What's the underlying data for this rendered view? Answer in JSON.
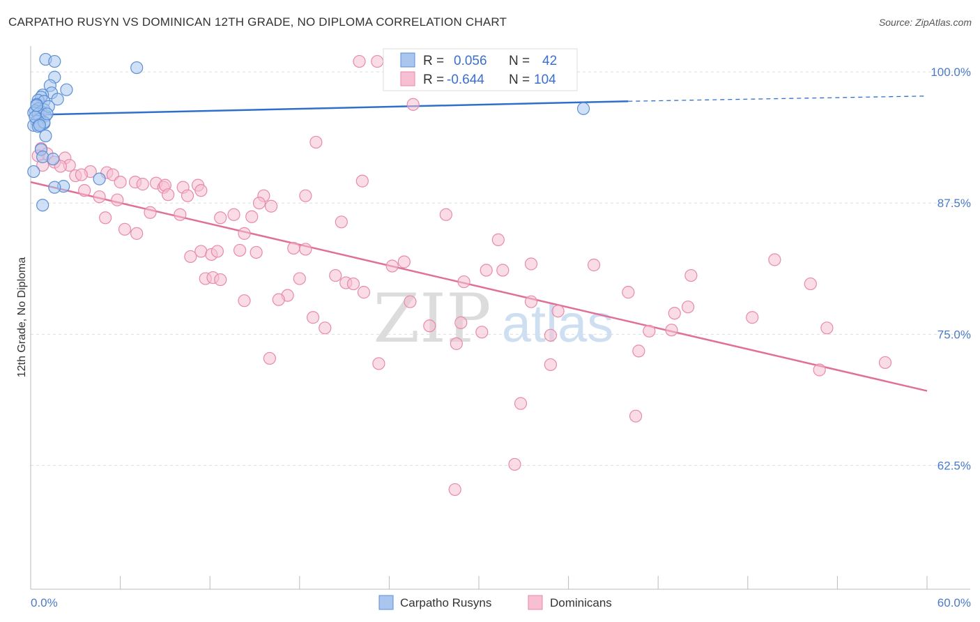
{
  "title": "CARPATHO RUSYN VS DOMINICAN 12TH GRADE, NO DIPLOMA CORRELATION CHART",
  "source": "Source: ZipAtlas.com",
  "watermark": {
    "zip": "ZIP",
    "atlas": "atlas"
  },
  "colors": {
    "blue": "#5b8fd6",
    "blue_fill": "#aac6ee",
    "blue_line": "#2f6fcc",
    "pink": "#e88aa8",
    "pink_fill": "#f6c0d2",
    "pink_line": "#e0709a",
    "grid": "#dddddd",
    "tick_text": "#4a7bc8"
  },
  "legend": {
    "rows": [
      {
        "r_label": "R =",
        "r_value": "0.056",
        "n_label": "N =",
        "n_value": "42"
      },
      {
        "r_label": "R =",
        "r_value": "-0.644",
        "n_label": "N =",
        "n_value": "104"
      }
    ]
  },
  "chart_data": {
    "type": "scatter",
    "title": "CARPATHO RUSYN VS DOMINICAN 12TH GRADE, NO DIPLOMA CORRELATION CHART",
    "xlabel": "",
    "ylabel": "12th Grade, No Diploma",
    "xlim": [
      0,
      60
    ],
    "ylim": [
      50.7,
      102.2
    ],
    "x_tick_labels": [
      "0.0%",
      "60.0%"
    ],
    "y_ticks": [
      62.5,
      75.0,
      87.5,
      100.0
    ],
    "y_tick_labels": [
      "62.5%",
      "75.0%",
      "87.5%",
      "100.0%"
    ],
    "grid": true,
    "legend_position": "top-center",
    "series": [
      {
        "name": "Carpatho Rusyns",
        "color": "#5b8fd6",
        "points": [
          [
            1.0,
            101.2
          ],
          [
            1.6,
            101.0
          ],
          [
            7.1,
            100.4
          ],
          [
            1.6,
            99.5
          ],
          [
            1.3,
            98.7
          ],
          [
            2.4,
            98.3
          ],
          [
            1.4,
            98.0
          ],
          [
            0.8,
            97.8
          ],
          [
            0.7,
            97.6
          ],
          [
            1.8,
            97.4
          ],
          [
            0.5,
            97.3
          ],
          [
            0.9,
            97.2
          ],
          [
            0.4,
            96.9
          ],
          [
            0.5,
            96.5
          ],
          [
            0.9,
            96.4
          ],
          [
            0.3,
            96.3
          ],
          [
            0.7,
            96.2
          ],
          [
            0.2,
            96.1
          ],
          [
            0.5,
            96.0
          ],
          [
            1.0,
            95.8
          ],
          [
            0.6,
            95.5
          ],
          [
            0.4,
            95.3
          ],
          [
            0.9,
            95.1
          ],
          [
            0.2,
            94.9
          ],
          [
            1.0,
            93.9
          ],
          [
            0.7,
            92.6
          ],
          [
            0.8,
            91.9
          ],
          [
            1.5,
            91.7
          ],
          [
            4.6,
            89.8
          ],
          [
            2.2,
            89.1
          ],
          [
            1.6,
            89.0
          ],
          [
            0.8,
            87.3
          ],
          [
            0.2,
            90.5
          ],
          [
            37.0,
            96.5
          ],
          [
            0.6,
            95.0
          ],
          [
            0.3,
            95.7
          ],
          [
            1.2,
            96.7
          ],
          [
            0.5,
            94.8
          ],
          [
            0.9,
            95.2
          ],
          [
            0.4,
            96.8
          ],
          [
            1.1,
            96.0
          ],
          [
            0.6,
            94.9
          ]
        ]
      },
      {
        "name": "Dominicans",
        "color": "#e88aa8",
        "points": [
          [
            22.0,
            101.0
          ],
          [
            23.2,
            101.0
          ],
          [
            25.6,
            96.9
          ],
          [
            19.1,
            93.3
          ],
          [
            0.7,
            92.7
          ],
          [
            1.1,
            92.2
          ],
          [
            0.5,
            92.0
          ],
          [
            2.3,
            91.8
          ],
          [
            1.6,
            91.4
          ],
          [
            2.6,
            91.1
          ],
          [
            0.8,
            91.1
          ],
          [
            2.0,
            91.0
          ],
          [
            4.0,
            90.5
          ],
          [
            3.0,
            90.1
          ],
          [
            3.4,
            90.2
          ],
          [
            5.1,
            90.4
          ],
          [
            5.5,
            90.2
          ],
          [
            6.0,
            89.5
          ],
          [
            7.0,
            89.5
          ],
          [
            7.5,
            89.3
          ],
          [
            8.4,
            89.4
          ],
          [
            8.9,
            89.0
          ],
          [
            9.0,
            89.2
          ],
          [
            10.2,
            89.0
          ],
          [
            11.2,
            89.2
          ],
          [
            11.4,
            88.7
          ],
          [
            3.6,
            88.7
          ],
          [
            4.6,
            88.1
          ],
          [
            5.8,
            87.8
          ],
          [
            9.2,
            88.3
          ],
          [
            10.5,
            88.2
          ],
          [
            15.6,
            88.2
          ],
          [
            18.4,
            88.2
          ],
          [
            22.2,
            89.6
          ],
          [
            15.3,
            87.5
          ],
          [
            16.1,
            87.2
          ],
          [
            13.6,
            86.4
          ],
          [
            12.7,
            86.1
          ],
          [
            14.8,
            86.2
          ],
          [
            5.0,
            86.1
          ],
          [
            8.0,
            86.6
          ],
          [
            10.0,
            86.4
          ],
          [
            20.8,
            85.7
          ],
          [
            27.8,
            86.4
          ],
          [
            6.3,
            85.0
          ],
          [
            7.1,
            84.6
          ],
          [
            14.3,
            84.6
          ],
          [
            31.3,
            84.0
          ],
          [
            17.6,
            83.2
          ],
          [
            10.7,
            82.4
          ],
          [
            11.4,
            82.9
          ],
          [
            12.1,
            82.6
          ],
          [
            12.5,
            82.9
          ],
          [
            14.0,
            83.0
          ],
          [
            15.1,
            82.8
          ],
          [
            18.4,
            83.1
          ],
          [
            24.2,
            81.5
          ],
          [
            25.0,
            81.9
          ],
          [
            30.5,
            81.1
          ],
          [
            31.6,
            81.1
          ],
          [
            33.5,
            81.7
          ],
          [
            37.7,
            81.6
          ],
          [
            49.8,
            82.1
          ],
          [
            20.4,
            80.6
          ],
          [
            21.1,
            79.9
          ],
          [
            21.6,
            79.8
          ],
          [
            11.7,
            80.3
          ],
          [
            12.2,
            80.4
          ],
          [
            12.7,
            80.2
          ],
          [
            18.0,
            80.3
          ],
          [
            29.0,
            80.0
          ],
          [
            44.2,
            80.6
          ],
          [
            52.2,
            79.8
          ],
          [
            17.2,
            78.7
          ],
          [
            16.6,
            78.3
          ],
          [
            22.3,
            79.0
          ],
          [
            14.3,
            78.2
          ],
          [
            25.4,
            78.1
          ],
          [
            33.5,
            78.1
          ],
          [
            35.3,
            77.2
          ],
          [
            40.0,
            79.0
          ],
          [
            44.0,
            77.6
          ],
          [
            43.1,
            77.0
          ],
          [
            48.3,
            76.6
          ],
          [
            28.8,
            76.1
          ],
          [
            26.7,
            75.8
          ],
          [
            18.9,
            76.6
          ],
          [
            19.7,
            75.6
          ],
          [
            41.4,
            75.3
          ],
          [
            42.9,
            75.4
          ],
          [
            53.3,
            75.6
          ],
          [
            30.2,
            75.2
          ],
          [
            34.8,
            74.9
          ],
          [
            28.5,
            74.1
          ],
          [
            40.7,
            73.4
          ],
          [
            16.0,
            72.7
          ],
          [
            23.3,
            72.2
          ],
          [
            34.8,
            72.1
          ],
          [
            52.8,
            71.6
          ],
          [
            57.2,
            72.3
          ],
          [
            32.8,
            68.4
          ],
          [
            40.5,
            67.2
          ],
          [
            32.4,
            62.6
          ],
          [
            28.4,
            60.2
          ]
        ]
      }
    ],
    "trend_lines": [
      {
        "series": "Carpatho Rusyns",
        "x": [
          0,
          40
        ],
        "y": [
          95.9,
          97.2
        ],
        "dashed_extension_to": 60,
        "dashed_end_y": 97.7
      },
      {
        "series": "Dominicans",
        "x": [
          0,
          60
        ],
        "y": [
          89.5,
          69.6
        ]
      }
    ]
  },
  "bottom_legend": [
    {
      "label": "Carpatho Rusyns",
      "color": "#aac6ee"
    },
    {
      "label": "Dominicans",
      "color": "#f6c0d2"
    }
  ]
}
